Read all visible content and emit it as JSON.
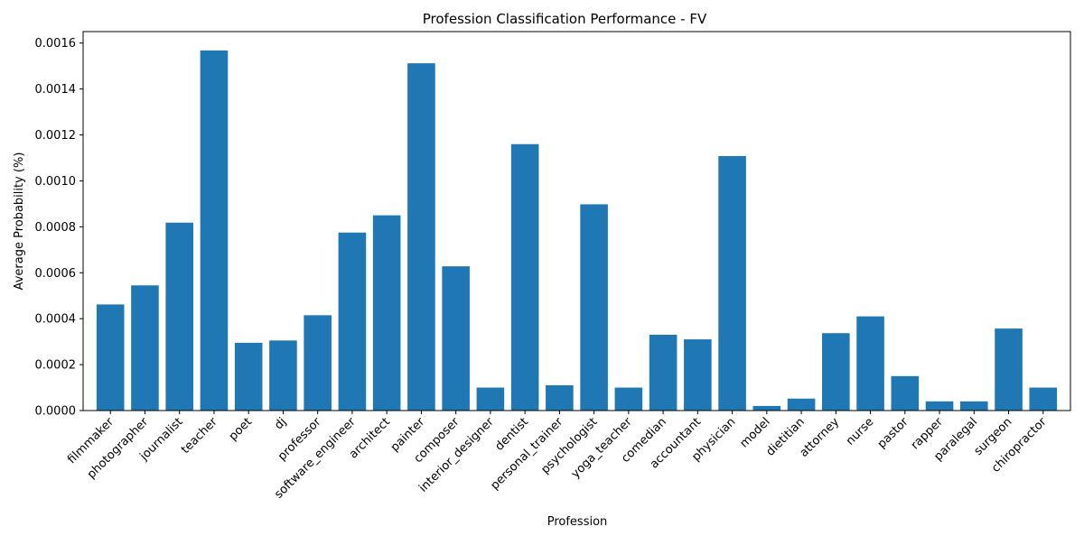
{
  "chart_data": {
    "type": "bar",
    "title": "Profession Classification Performance - FV",
    "xlabel": "Profession",
    "ylabel": "Average Probability (%)",
    "ylim": [
      0,
      0.00165
    ],
    "yticks": [
      0.0,
      0.0002,
      0.0004,
      0.0006,
      0.0008,
      0.001,
      0.0012,
      0.0014,
      0.0016
    ],
    "ytick_labels": [
      "0.0000",
      "0.0002",
      "0.0004",
      "0.0006",
      "0.0008",
      "0.0010",
      "0.0012",
      "0.0014",
      "0.0016"
    ],
    "grid": false,
    "bar_color": "#1f77b4",
    "categories": [
      "filmmaker",
      "photographer",
      "journalist",
      "teacher",
      "poet",
      "dj",
      "professor",
      "software_engineer",
      "architect",
      "painter",
      "composer",
      "interior_designer",
      "dentist",
      "personal_trainer",
      "psychologist",
      "yoga_teacher",
      "comedian",
      "accountant",
      "physician",
      "model",
      "dietitian",
      "attorney",
      "nurse",
      "pastor",
      "rapper",
      "paralegal",
      "surgeon",
      "chiropractor"
    ],
    "values": [
      0.000462,
      0.000545,
      0.000818,
      0.001568,
      0.000295,
      0.000305,
      0.000415,
      0.000775,
      0.00085,
      0.001512,
      0.000628,
      0.0001,
      0.00116,
      0.00011,
      0.000898,
      0.0001,
      0.00033,
      0.00031,
      0.001108,
      2e-05,
      5.2e-05,
      0.000337,
      0.00041,
      0.00015,
      4e-05,
      4e-05,
      0.000357,
      0.0001
    ]
  }
}
